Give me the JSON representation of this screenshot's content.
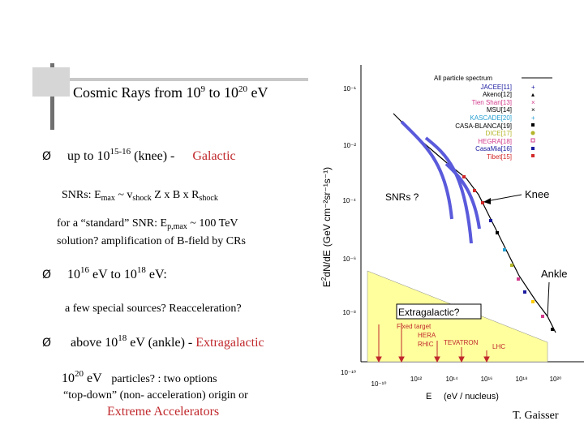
{
  "slide": {
    "title": {
      "prefix": "Cosmic Rays from 10",
      "exp1": "9",
      "mid": " to 10",
      "exp2": "20",
      "suffix": " eV"
    },
    "bullet_symbol": "Ø",
    "bullet1": {
      "prefix": "up to 10",
      "exp": "15-16",
      "mid": " (knee) -",
      "highlight": "Galactic"
    },
    "snrs_line": {
      "a": "SNRs: E",
      "sub1": "max",
      "b": " ~ v",
      "sub2": "shock",
      "c": " Z x B x R",
      "sub3": "shock"
    },
    "standard_snr": {
      "a": "for a “standard” SNR: E",
      "sub": "p,max",
      "b": " ~  100 TeV"
    },
    "solution_line": "solution?  amplification of B-field by CRs",
    "bullet2": {
      "a": "10",
      "exp1": "16",
      "b": " eV  to 10",
      "exp2": "18",
      "c": " eV:"
    },
    "special_sources": "a few special sources? Reacceleration?",
    "bullet3": {
      "a": "above 10",
      "exp": "18",
      "b": " eV (ankle)  - ",
      "highlight": "Extragalactic"
    },
    "particles_line": {
      "a": "10",
      "exp": "20",
      "b": " eV",
      "c": "particles? : two options"
    },
    "topdown_line": "“top-down” (non- acceleration) origin or",
    "extreme_line": "Extreme Accelerators",
    "credit": "T. Gaisser"
  },
  "colors": {
    "red_text": "#c0282c",
    "yellow_region": "#ffff9e",
    "snr_curves": "#5a5adc",
    "accel_arrows": "#c0282c",
    "deco_dark": "#707070",
    "deco_light": "#c8c8c8"
  },
  "chart_data": {
    "type": "scatter",
    "title": "",
    "xlabel": "E",
    "xlabel_units": "(eV / nucleus)",
    "ylabel_prefix": "E",
    "ylabel_sup": "2",
    "ylabel_main": "dN/dE",
    "ylabel_units": "(GeV cm⁻²sr⁻¹s⁻¹)",
    "x_scale": "log",
    "y_scale": "log",
    "x_tick_labels": [
      "10⁻¹⁰",
      "10¹²",
      "10¹⁴",
      "10¹⁶",
      "10¹⁸",
      "10²⁰"
    ],
    "y_tick_labels": [
      "10⁻¹",
      "10⁻²",
      "10⁻⁴",
      "10⁻⁶",
      "10⁻⁸",
      "10⁻¹⁰"
    ],
    "legend": {
      "position": "top-right",
      "header": "All particle spectrum",
      "entries": [
        {
          "name": "JACEE[11]",
          "color": "#1a1aa0",
          "marker": "+"
        },
        {
          "name": "Akeno[12]",
          "color": "#000000",
          "marker": "triangle"
        },
        {
          "name": "Tien Shan[13]",
          "color": "#d23c8c",
          "marker": "x"
        },
        {
          "name": "MSU[14]",
          "color": "#000000",
          "marker": "x"
        },
        {
          "name": "KASCADE[20]",
          "color": "#28a0d2",
          "marker": "cross"
        },
        {
          "name": "CASA-BLANCA[19]",
          "color": "#000000",
          "marker": "square"
        },
        {
          "name": "DICE[17]",
          "color": "#b4b428",
          "marker": "circle"
        },
        {
          "name": "HEGRA[18]",
          "color": "#d23c8c",
          "marker": "square"
        },
        {
          "name": "CasaMia[16]",
          "color": "#1a1aa0",
          "marker": "square"
        },
        {
          "name": "Tibet[15]",
          "color": "#d22828",
          "marker": "square"
        }
      ]
    },
    "annotations": {
      "snrs": "SNRs ?",
      "knee": "Knee",
      "ankle": "Ankle",
      "extragalactic": "Extragalactic?",
      "fixed_target": "Fixed target",
      "hera": "HERA",
      "rhic": "RHIC",
      "tevatron": "TEVATRON",
      "lhc": "LHC"
    },
    "series": [
      {
        "name": "All particle spectrum (E^2 flux, log10 units)",
        "x_log10": [
          11.0,
          12.0,
          13.0,
          14.0,
          15.0,
          15.6,
          16.0,
          17.0,
          18.0,
          18.6,
          19.0,
          19.5,
          20.0
        ],
        "y_log10": [
          -1.3,
          -2.0,
          -2.9,
          -3.8,
          -4.6,
          -5.0,
          -5.5,
          -6.6,
          -7.6,
          -8.3,
          -8.6,
          -9.0,
          -9.3
        ]
      }
    ]
  }
}
